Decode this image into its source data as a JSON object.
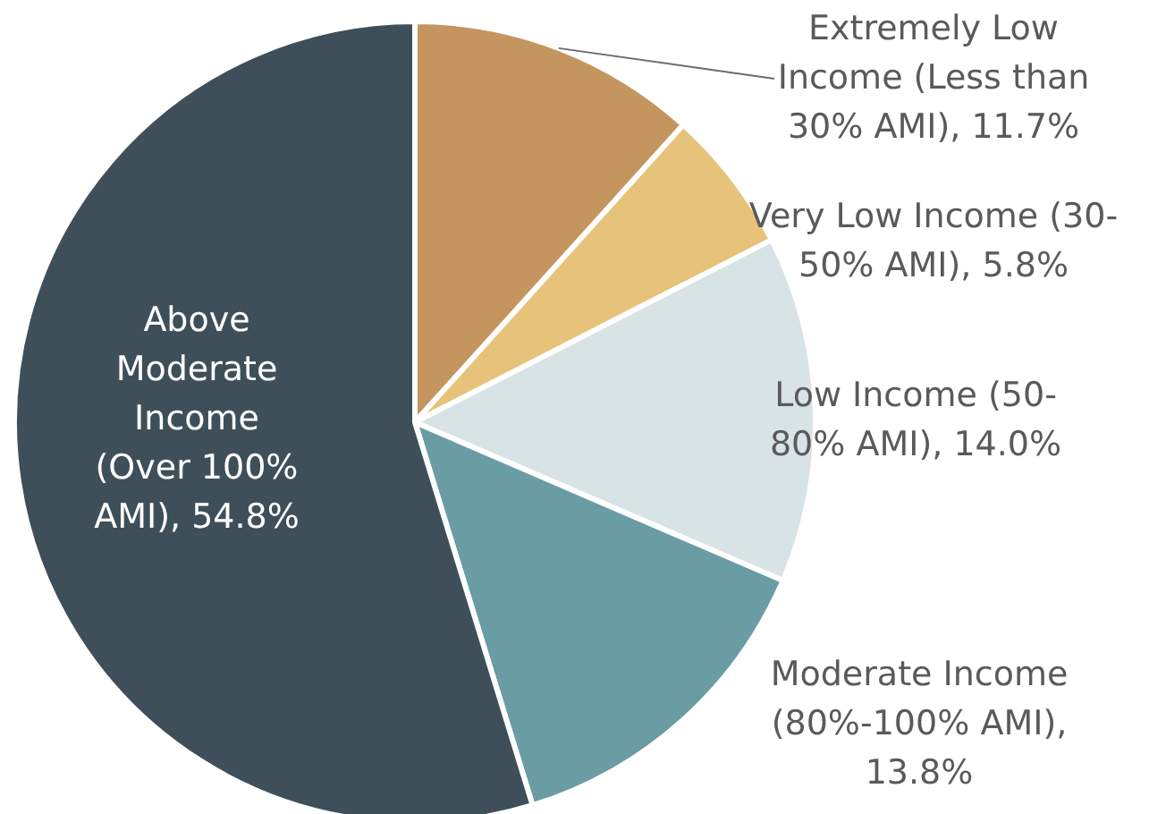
{
  "chart_data": {
    "type": "pie",
    "categories": [
      "Extremely Low Income (Less than 30% AMI), 11.7%",
      "Very Low Income (30-50% AMI), 5.8%",
      "Low Income (50-80% AMI), 14.0%",
      "Moderate Income (80%-100% AMI), 13.8%",
      "Above Moderate Income (Over 100% AMI), 54.8%"
    ],
    "values": [
      11.7,
      5.8,
      14.0,
      13.8,
      54.8
    ],
    "colors": [
      "#c4955f",
      "#e6c27a",
      "#d8e3e6",
      "#6a9ca3",
      "#3f4f59"
    ]
  }
}
